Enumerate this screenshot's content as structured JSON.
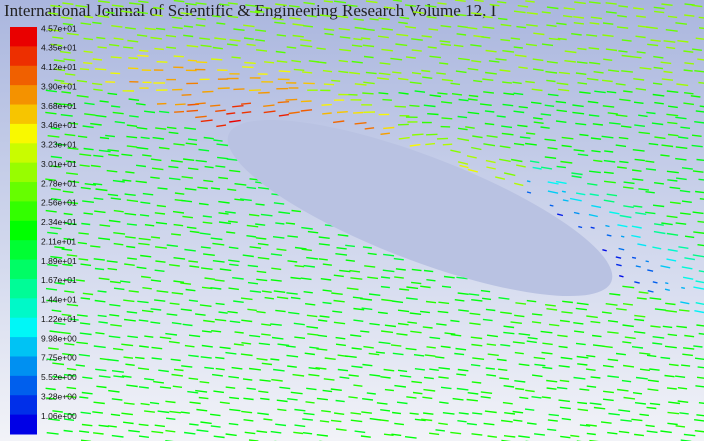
{
  "header": {
    "text": "International Journal of Scientific & Engineering Research Volume 12, I"
  },
  "legend": {
    "labels": [
      "4.57e+01",
      "4.35e+01",
      "4.12e+01",
      "3.90e+01",
      "3.68e+01",
      "3.46e+01",
      "3.23e+01",
      "3.01e+01",
      "2.78e+01",
      "2.56e+01",
      "2.34e+01",
      "2.11e+01",
      "1.89e+01",
      "1.67e+01",
      "1.44e+01",
      "1.22e+01",
      "9.98e+00",
      "7.75e+00",
      "5.52e+00",
      "3.28e+00",
      "1.06e+00"
    ]
  }
}
